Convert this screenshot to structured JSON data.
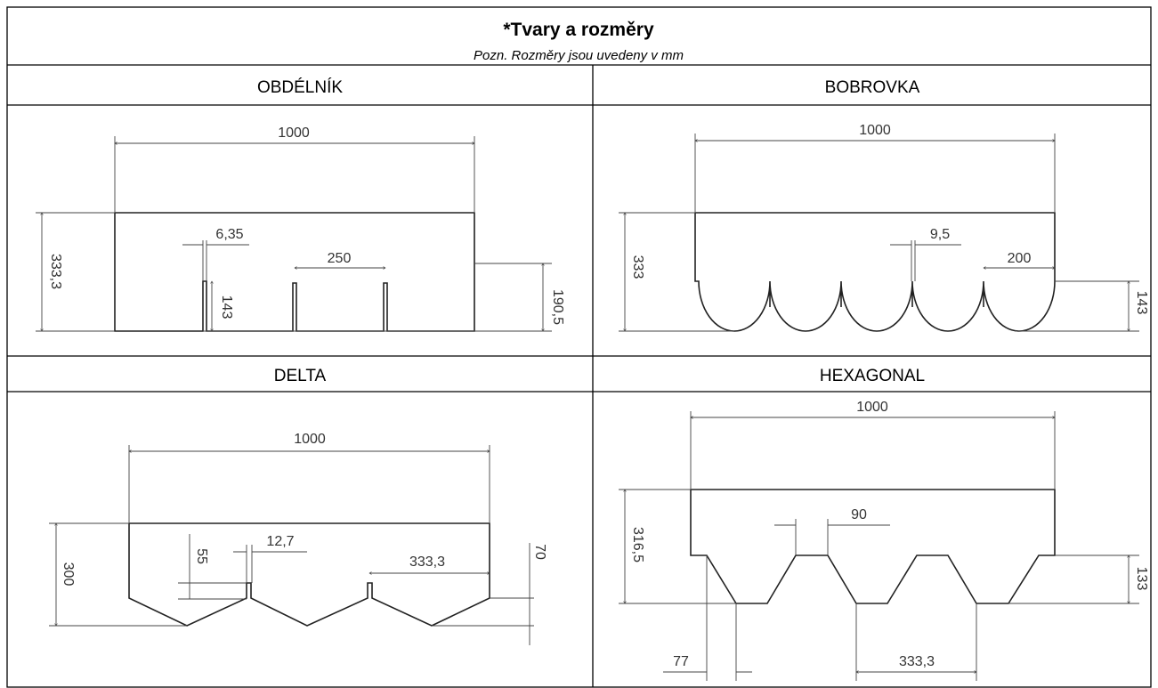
{
  "header": {
    "title": "*Tvary a rozměry",
    "note": "Pozn. Rozměry jsou uvedeny v mm"
  },
  "shapes": [
    {
      "name": "OBDÉLNÍK",
      "dimensions": [
        "1000",
        "6,35",
        "250",
        "333,3",
        "143",
        "190,5"
      ]
    },
    {
      "name": "BOBROVKA",
      "dimensions": [
        "1000",
        "9,5",
        "200",
        "333",
        "143"
      ]
    },
    {
      "name": "DELTA",
      "dimensions": [
        "1000",
        "55",
        "12,7",
        "333,3",
        "300",
        "70"
      ]
    },
    {
      "name": "HEXAGONAL",
      "dimensions": [
        "1000",
        "90",
        "316,5",
        "133",
        "77",
        "333,3"
      ]
    }
  ]
}
